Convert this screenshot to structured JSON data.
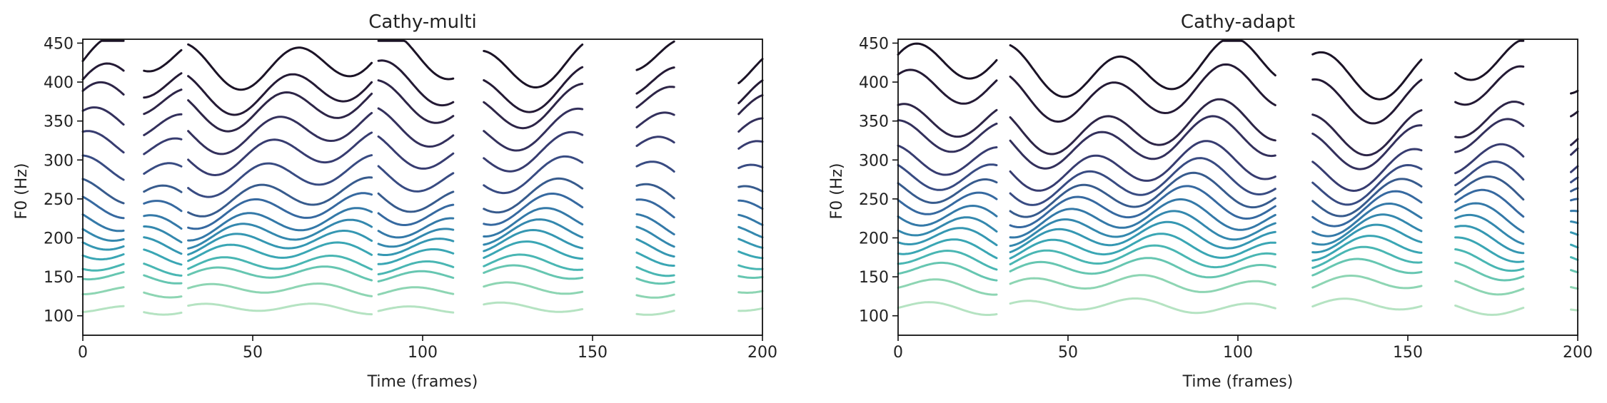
{
  "chart_data": [
    {
      "type": "line",
      "title": "Cathy-multi",
      "xlabel": "Time (frames)",
      "ylabel": "F0 (Hz)",
      "xlim": [
        0,
        200
      ],
      "ylim": [
        75,
        455
      ],
      "xticks": [
        "0",
        "50",
        "100",
        "150",
        "200"
      ],
      "yticks": [
        "100",
        "150",
        "200",
        "250",
        "300",
        "350",
        "400",
        "450"
      ],
      "grid": false,
      "voiced_segments": [
        [
          0,
          12
        ],
        [
          18,
          29
        ],
        [
          31,
          85
        ],
        [
          87,
          109
        ],
        [
          118,
          147
        ],
        [
          163,
          174
        ],
        [
          193,
          200
        ]
      ],
      "series_base_f0": [
        427,
        393,
        370,
        339,
        310,
        280,
        253,
        235,
        218,
        205,
        193,
        180,
        165,
        153,
        133,
        109
      ],
      "colors": [
        "#1b1326",
        "#241a35",
        "#2d2547",
        "#33305c",
        "#373c70",
        "#384b82",
        "#375b8d",
        "#3669a0",
        "#3479a8",
        "#3488ae",
        "#3597b2",
        "#3aa6b4",
        "#49b6b3",
        "#66c6b1",
        "#8dd5b3",
        "#b5e3c2"
      ]
    },
    {
      "type": "line",
      "title": "Cathy-adapt",
      "xlabel": "Time (frames)",
      "ylabel": "F0 (Hz)",
      "xlim": [
        0,
        200
      ],
      "ylim": [
        75,
        455
      ],
      "xticks": [
        "0",
        "50",
        "100",
        "150",
        "200"
      ],
      "yticks": [
        "100",
        "150",
        "200",
        "250",
        "300",
        "350",
        "400",
        "450"
      ],
      "grid": false,
      "voiced_segments": [
        [
          0,
          29
        ],
        [
          33,
          111
        ],
        [
          122,
          154
        ],
        [
          164,
          184
        ],
        [
          198,
          200
        ]
      ],
      "series_base_f0": [
        418,
        385,
        342,
        322,
        292,
        272,
        255,
        240,
        225,
        212,
        200,
        187,
        174,
        160,
        140,
        112
      ],
      "colors": [
        "#1b1326",
        "#241a35",
        "#2d2547",
        "#33305c",
        "#373c70",
        "#384b82",
        "#375b8d",
        "#3669a0",
        "#3479a8",
        "#3488ae",
        "#3597b2",
        "#3aa6b4",
        "#49b6b3",
        "#66c6b1",
        "#8dd5b3",
        "#b5e3c2"
      ]
    }
  ]
}
